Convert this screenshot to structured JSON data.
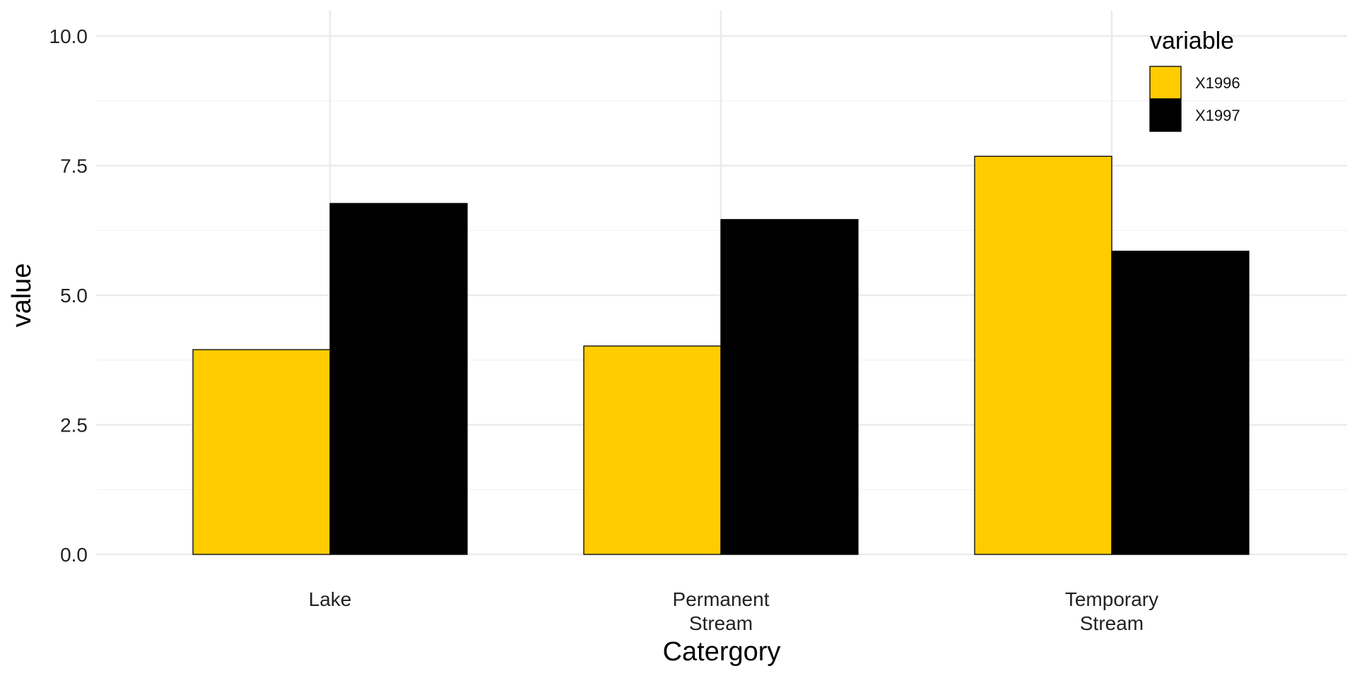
{
  "chart_data": {
    "type": "bar",
    "xlabel": "Catergory",
    "ylabel": "value",
    "categories": [
      [
        "Lake"
      ],
      [
        "Permanent",
        "Stream"
      ],
      [
        "Temporary",
        "Stream"
      ]
    ],
    "series": [
      {
        "name": "X1996",
        "color": "#FFCC00",
        "values": [
          3.95,
          4.02,
          7.68
        ]
      },
      {
        "name": "X1997",
        "color": "#000000",
        "values": [
          6.77,
          6.46,
          5.85
        ]
      }
    ],
    "ylim": [
      0,
      10
    ],
    "y_ticks": [
      0,
      2.5,
      5,
      7.5,
      10
    ],
    "y_tick_labels": [
      "0.0",
      "2.5",
      "5.0",
      "7.5",
      "10.0"
    ],
    "grid": true,
    "legend": {
      "title": "variable",
      "placement": "top-right"
    }
  }
}
